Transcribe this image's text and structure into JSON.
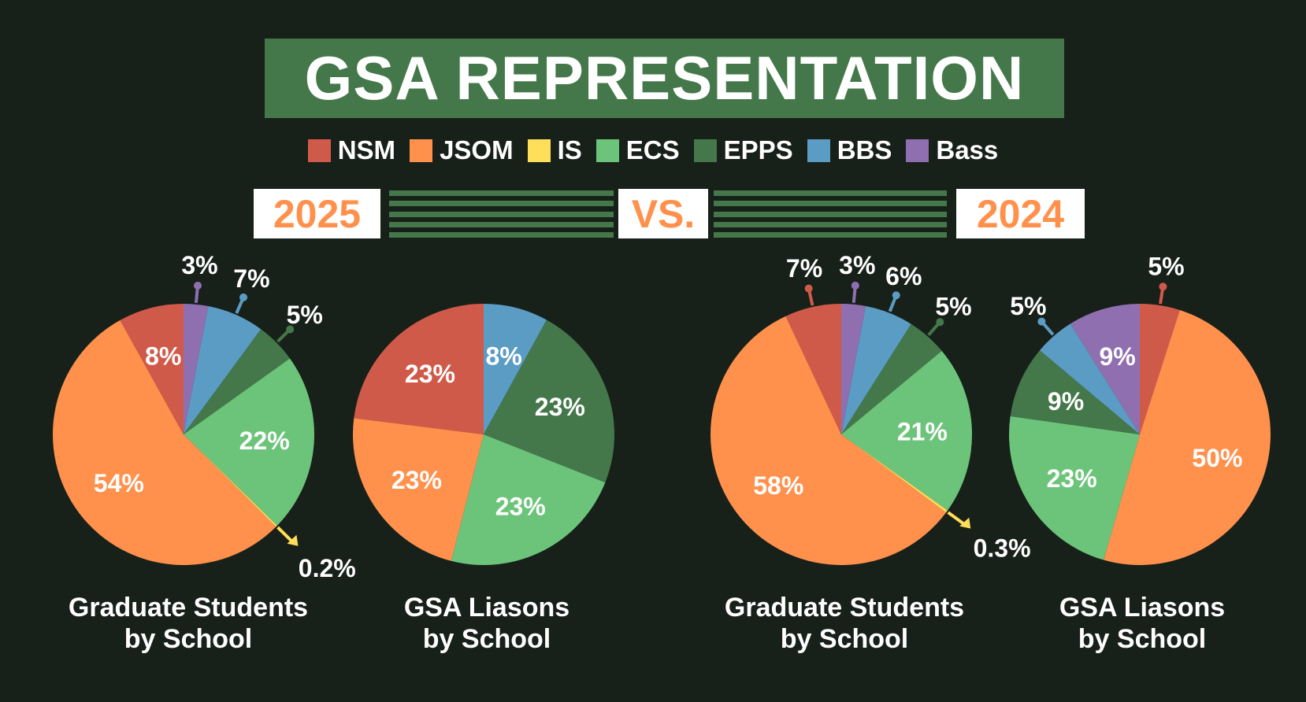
{
  "title": "GSA REPRESENTATION",
  "legend": [
    {
      "label": "NSM",
      "color": "#d05a4a"
    },
    {
      "label": "JSOM",
      "color": "#ff914d"
    },
    {
      "label": "IS",
      "color": "#ffde59"
    },
    {
      "label": "ECS",
      "color": "#6cc47a"
    },
    {
      "label": "EPPS",
      "color": "#44784a"
    },
    {
      "label": "BBS",
      "color": "#5b9cc4"
    },
    {
      "label": "Bass",
      "color": "#8f6fb0"
    }
  ],
  "comparison": {
    "left_year": "2025",
    "vs": "VS.",
    "right_year": "2024"
  },
  "chart_data": [
    {
      "type": "pie",
      "year": "2025",
      "title": "Graduate Students by School",
      "slices": [
        {
          "name": "Bass",
          "value": 3
        },
        {
          "name": "BBS",
          "value": 7
        },
        {
          "name": "EPPS",
          "value": 5
        },
        {
          "name": "ECS",
          "value": 22
        },
        {
          "name": "IS",
          "value": 0.2
        },
        {
          "name": "JSOM",
          "value": 54
        },
        {
          "name": "NSM",
          "value": 8
        }
      ]
    },
    {
      "type": "pie",
      "year": "2025",
      "title": "GSA Liasons by School",
      "slices": [
        {
          "name": "BBS",
          "value": 8
        },
        {
          "name": "EPPS",
          "value": 23
        },
        {
          "name": "ECS",
          "value": 23
        },
        {
          "name": "JSOM",
          "value": 23
        },
        {
          "name": "NSM",
          "value": 23
        }
      ]
    },
    {
      "type": "pie",
      "year": "2024",
      "title": "Graduate Students by School",
      "slices": [
        {
          "name": "Bass",
          "value": 3
        },
        {
          "name": "BBS",
          "value": 6
        },
        {
          "name": "EPPS",
          "value": 5
        },
        {
          "name": "ECS",
          "value": 21
        },
        {
          "name": "IS",
          "value": 0.3
        },
        {
          "name": "JSOM",
          "value": 58
        },
        {
          "name": "NSM",
          "value": 7
        }
      ]
    },
    {
      "type": "pie",
      "year": "2024",
      "title": "GSA Liasons by School",
      "slices": [
        {
          "name": "NSM",
          "value": 5
        },
        {
          "name": "JSOM",
          "value": 50
        },
        {
          "name": "ECS",
          "value": 23
        },
        {
          "name": "EPPS",
          "value": 9
        },
        {
          "name": "BBS",
          "value": 5
        },
        {
          "name": "Bass",
          "value": 9
        }
      ]
    }
  ],
  "captions": [
    {
      "line1": "Graduate Students",
      "line2": "by School"
    },
    {
      "line1": "GSA Liasons",
      "line2": "by School"
    },
    {
      "line1": "Graduate Students",
      "line2": "by School"
    },
    {
      "line1": "GSA Liasons",
      "line2": "by School"
    }
  ]
}
